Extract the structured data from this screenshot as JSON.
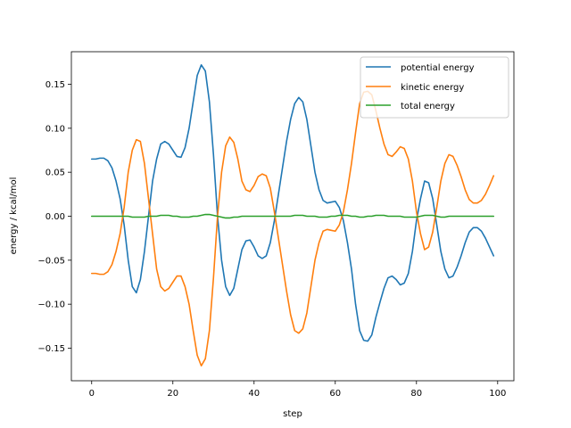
{
  "chart_data": {
    "type": "line",
    "xlabel": "step",
    "ylabel": "energy / kcal/mol",
    "xlim": [
      -5,
      104
    ],
    "ylim": [
      -0.187,
      0.187
    ],
    "xticks": [
      0,
      20,
      40,
      60,
      80,
      100
    ],
    "yticks": [
      -0.15,
      -0.1,
      -0.05,
      0.0,
      0.05,
      0.1,
      0.15
    ],
    "xtick_labels": [
      "0",
      "20",
      "40",
      "60",
      "80",
      "100"
    ],
    "ytick_labels": [
      "−0.15",
      "−0.10",
      "−0.05",
      "0.00",
      "0.05",
      "0.10",
      "0.15"
    ],
    "grid": false,
    "legend_position": "top-right",
    "x": [
      0,
      1,
      2,
      3,
      4,
      5,
      6,
      7,
      8,
      9,
      10,
      11,
      12,
      13,
      14,
      15,
      16,
      17,
      18,
      19,
      20,
      21,
      22,
      23,
      24,
      25,
      26,
      27,
      28,
      29,
      30,
      31,
      32,
      33,
      34,
      35,
      36,
      37,
      38,
      39,
      40,
      41,
      42,
      43,
      44,
      45,
      46,
      47,
      48,
      49,
      50,
      51,
      52,
      53,
      54,
      55,
      56,
      57,
      58,
      59,
      60,
      61,
      62,
      63,
      64,
      65,
      66,
      67,
      68,
      69,
      70,
      71,
      72,
      73,
      74,
      75,
      76,
      77,
      78,
      79,
      80,
      81,
      82,
      83,
      84,
      85,
      86,
      87,
      88,
      89,
      90,
      91,
      92,
      93,
      94,
      95,
      96,
      97,
      98,
      99
    ],
    "series": [
      {
        "name": "potential energy",
        "color": "#1f77b4",
        "values": [
          0.065,
          0.065,
          0.066,
          0.066,
          0.063,
          0.055,
          0.04,
          0.02,
          -0.01,
          -0.05,
          -0.08,
          -0.087,
          -0.072,
          -0.04,
          0.0,
          0.04,
          0.065,
          0.082,
          0.085,
          0.082,
          0.075,
          0.068,
          0.067,
          0.078,
          0.1,
          0.13,
          0.16,
          0.172,
          0.165,
          0.13,
          0.07,
          0.0,
          -0.05,
          -0.08,
          -0.09,
          -0.082,
          -0.06,
          -0.038,
          -0.028,
          -0.027,
          -0.035,
          -0.045,
          -0.048,
          -0.045,
          -0.03,
          -0.005,
          0.025,
          0.055,
          0.085,
          0.11,
          0.128,
          0.135,
          0.13,
          0.11,
          0.08,
          0.05,
          0.03,
          0.018,
          0.015,
          0.016,
          0.017,
          0.01,
          -0.005,
          -0.03,
          -0.06,
          -0.1,
          -0.13,
          -0.141,
          -0.142,
          -0.135,
          -0.115,
          -0.098,
          -0.082,
          -0.07,
          -0.068,
          -0.072,
          -0.078,
          -0.076,
          -0.065,
          -0.04,
          -0.005,
          0.02,
          0.04,
          0.038,
          0.02,
          -0.01,
          -0.04,
          -0.06,
          -0.07,
          -0.068,
          -0.058,
          -0.045,
          -0.03,
          -0.018,
          -0.013,
          -0.013,
          -0.017,
          -0.025,
          -0.035,
          -0.045
        ]
      },
      {
        "name": "kinetic energy",
        "color": "#ff7f0e",
        "values": [
          -0.065,
          -0.065,
          -0.066,
          -0.066,
          -0.063,
          -0.055,
          -0.04,
          -0.02,
          0.01,
          0.05,
          0.075,
          0.087,
          0.085,
          0.06,
          0.02,
          -0.02,
          -0.06,
          -0.08,
          -0.085,
          -0.082,
          -0.075,
          -0.068,
          -0.068,
          -0.08,
          -0.1,
          -0.13,
          -0.158,
          -0.17,
          -0.162,
          -0.13,
          -0.07,
          0.0,
          0.05,
          0.08,
          0.09,
          0.084,
          0.065,
          0.04,
          0.03,
          0.028,
          0.035,
          0.045,
          0.048,
          0.046,
          0.032,
          0.005,
          -0.025,
          -0.055,
          -0.085,
          -0.112,
          -0.13,
          -0.133,
          -0.128,
          -0.11,
          -0.08,
          -0.05,
          -0.03,
          -0.017,
          -0.015,
          -0.016,
          -0.017,
          -0.01,
          0.005,
          0.03,
          0.06,
          0.095,
          0.128,
          0.141,
          0.142,
          0.138,
          0.12,
          0.1,
          0.082,
          0.07,
          0.068,
          0.073,
          0.079,
          0.077,
          0.065,
          0.04,
          0.005,
          -0.02,
          -0.038,
          -0.035,
          -0.018,
          0.01,
          0.04,
          0.06,
          0.07,
          0.068,
          0.058,
          0.045,
          0.03,
          0.019,
          0.015,
          0.015,
          0.018,
          0.025,
          0.035,
          0.046
        ]
      },
      {
        "name": "total energy",
        "color": "#2ca02c",
        "values": [
          0.0,
          0.0,
          0.0,
          0.0,
          0.0,
          0.0,
          0.0,
          0.0,
          0.0,
          0.0,
          -0.001,
          -0.001,
          -0.001,
          -0.001,
          0.0,
          0.0,
          0.0,
          0.001,
          0.001,
          0.001,
          0.0,
          0.0,
          -0.001,
          -0.001,
          -0.001,
          0.0,
          0.0,
          0.001,
          0.002,
          0.002,
          0.001,
          0.0,
          -0.001,
          -0.002,
          -0.002,
          -0.001,
          -0.001,
          0.0,
          0.0,
          0.0,
          0.0,
          0.0,
          0.0,
          0.0,
          0.0,
          0.0,
          0.0,
          0.0,
          0.0,
          0.0,
          0.001,
          0.001,
          0.001,
          0.0,
          0.0,
          0.0,
          -0.001,
          -0.001,
          -0.001,
          0.0,
          0.0,
          0.001,
          0.001,
          0.001,
          0.0,
          0.0,
          -0.001,
          -0.001,
          0.0,
          0.0,
          0.001,
          0.001,
          0.001,
          0.0,
          0.0,
          0.0,
          0.0,
          -0.001,
          -0.001,
          -0.001,
          -0.001,
          0.0,
          0.001,
          0.001,
          0.001,
          0.0,
          -0.001,
          -0.001,
          0.0,
          0.0,
          0.0,
          0.0,
          0.0,
          0.0,
          0.0,
          0.0,
          0.0,
          0.0,
          0.0,
          0.0
        ]
      }
    ]
  }
}
